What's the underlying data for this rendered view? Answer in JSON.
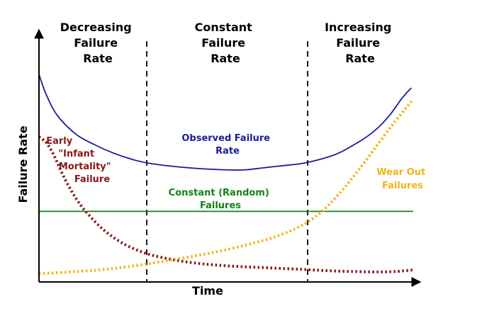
{
  "chart_data": {
    "type": "line",
    "title": "",
    "xlabel": "Time",
    "ylabel": "Failure Rate",
    "x_range": [
      0,
      100
    ],
    "y_range": [
      0,
      100
    ],
    "regions": [
      {
        "name": "early",
        "title_lines": [
          "Decreasing",
          "Failure",
          "Rate"
        ],
        "x_start": 0,
        "x_end": 28.8
      },
      {
        "name": "constant",
        "title_lines": [
          "Constant",
          "Failure",
          "Rate"
        ],
        "x_start": 28.8,
        "x_end": 71.8
      },
      {
        "name": "wearout",
        "title_lines": [
          "Increasing",
          "Failure",
          "Rate"
        ],
        "x_start": 71.8,
        "x_end": 100
      }
    ],
    "dividers_x": [
      28.8,
      71.8
    ],
    "series": [
      {
        "name": "observed",
        "label_lines": [
          "Observed Failure",
          "Rate"
        ],
        "color": "#1b1b9a",
        "style": "solid",
        "x": [
          0,
          2,
          5,
          10,
          15,
          20,
          25,
          30,
          40,
          50,
          55,
          60,
          65,
          70,
          75,
          80,
          85,
          88,
          91,
          94,
          97,
          99.5
        ],
        "y": [
          100,
          90,
          80,
          71,
          66,
          62,
          59,
          57,
          55,
          54,
          54,
          55,
          56,
          57,
          59,
          62,
          67,
          70.5,
          75,
          81,
          88.5,
          93.5
        ]
      },
      {
        "name": "infant",
        "label_lines": [
          "Early",
          "\"Infant",
          "Mortality\"",
          "Failure"
        ],
        "color": "#8b1515",
        "style": "dotted",
        "x": [
          0,
          2,
          4,
          6,
          8,
          10,
          12,
          15,
          18,
          22,
          26,
          30,
          35,
          40,
          45,
          50,
          55,
          60,
          65,
          70,
          75,
          80,
          85,
          90,
          95,
          100
        ],
        "y": [
          70,
          67,
          61,
          53,
          46,
          40,
          35,
          29,
          24,
          19,
          15.5,
          13,
          11,
          9.5,
          8.5,
          7.8,
          7.3,
          6.9,
          6.5,
          6.1,
          5.6,
          5.2,
          5,
          4.8,
          5,
          5.8
        ]
      },
      {
        "name": "random",
        "label_lines": [
          "Constant (Random)",
          "Failures"
        ],
        "color": "#148214",
        "style": "solid",
        "x": [
          0,
          100
        ],
        "y": [
          34,
          34
        ]
      },
      {
        "name": "wearout",
        "label_lines": [
          "Wear Out",
          "Failures"
        ],
        "color": "#f2b418",
        "style": "dotted",
        "x": [
          0,
          10,
          20,
          30,
          40,
          50,
          60,
          65,
          70,
          75,
          80,
          85,
          90,
          95,
          100
        ],
        "y": [
          4,
          5,
          6.5,
          9,
          12,
          15.5,
          20,
          23,
          27,
          33,
          42,
          53,
          65,
          77,
          88
        ]
      }
    ]
  }
}
